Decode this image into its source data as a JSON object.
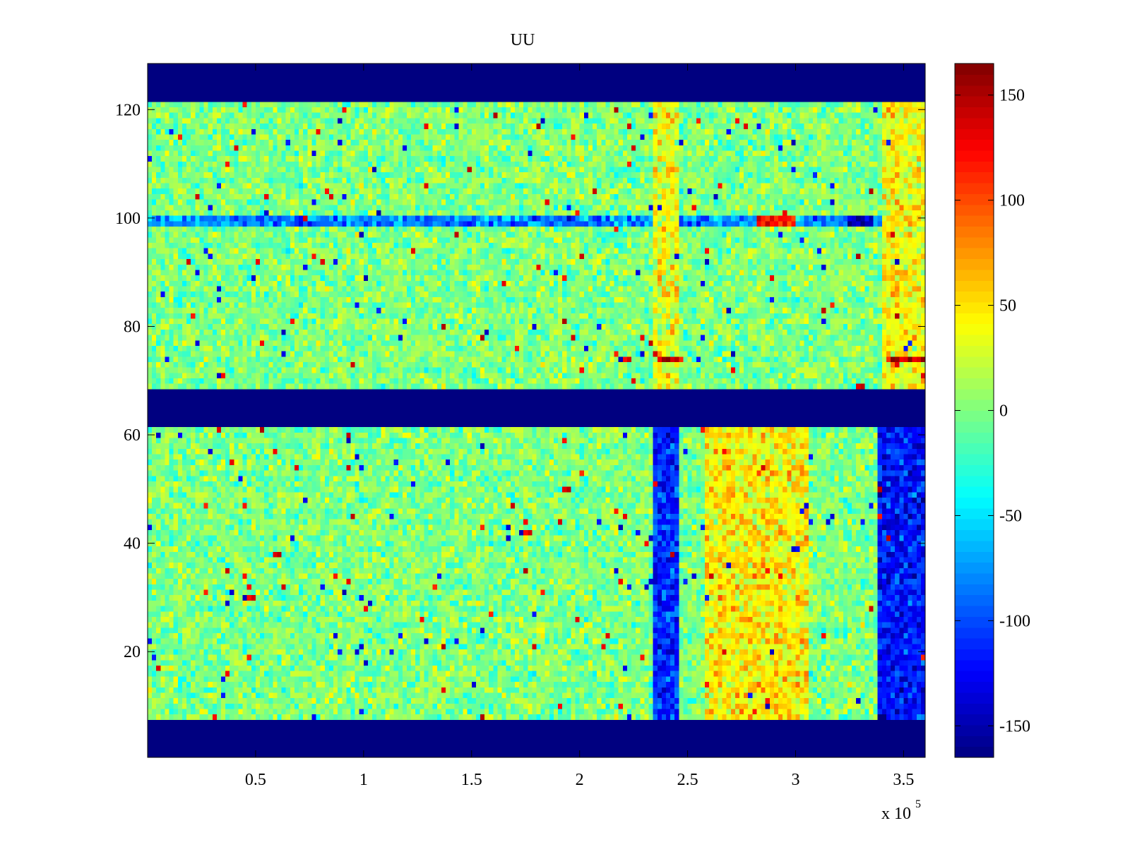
{
  "chart_data": {
    "type": "heatmap",
    "title": "UU",
    "xlabel": "",
    "ylabel": "",
    "x_range": [
      0,
      360000
    ],
    "y_range": [
      1,
      128
    ],
    "x_ticks": [
      50000,
      100000,
      150000,
      200000,
      250000,
      300000,
      350000
    ],
    "x_tick_labels": [
      "0.5",
      "1",
      "1.5",
      "2",
      "2.5",
      "3",
      "3.5"
    ],
    "x_exponent_label": "x 10",
    "x_exponent_power": "5",
    "y_ticks": [
      20,
      40,
      60,
      80,
      100,
      120
    ],
    "y_tick_labels": [
      "20",
      "40",
      "60",
      "80",
      "100",
      "120"
    ],
    "colorbar": {
      "colormap": "jet",
      "range": [
        -165,
        165
      ],
      "ticks": [
        -150,
        -100,
        -50,
        0,
        50,
        100,
        150
      ],
      "tick_labels": [
        "-150",
        "-100",
        "-50",
        "0",
        "50",
        "100",
        "150"
      ]
    },
    "fill_value": -165,
    "empty_row_bands": [
      [
        1,
        7
      ],
      [
        62,
        68
      ],
      [
        122,
        128
      ]
    ],
    "background_level": 0,
    "features": [
      {
        "kind": "row",
        "rows": [
          99,
          100
        ],
        "x": [
          0,
          360000
        ],
        "value": -80
      },
      {
        "kind": "block",
        "rows": [
          8,
          61
        ],
        "x": [
          235000,
          245000
        ],
        "value": -110
      },
      {
        "kind": "block",
        "rows": [
          8,
          61
        ],
        "x": [
          258000,
          305000
        ],
        "value": 45
      },
      {
        "kind": "block",
        "rows": [
          8,
          61
        ],
        "x": [
          338000,
          360000
        ],
        "value": -120
      },
      {
        "kind": "block",
        "rows": [
          69,
          121
        ],
        "x": [
          235000,
          245000
        ],
        "value": 35
      },
      {
        "kind": "block",
        "rows": [
          69,
          121
        ],
        "x": [
          340000,
          360000
        ],
        "value": 40
      },
      {
        "kind": "row",
        "rows": [
          74,
          74
        ],
        "x": [
          237000,
          247000
        ],
        "value": 140
      },
      {
        "kind": "row",
        "rows": [
          74,
          74
        ],
        "x": [
          342000,
          360000
        ],
        "value": 140
      },
      {
        "kind": "row",
        "rows": [
          99,
          100
        ],
        "x": [
          282000,
          300000
        ],
        "value": 120
      },
      {
        "kind": "row",
        "rows": [
          99,
          100
        ],
        "x": [
          325000,
          335000
        ],
        "value": -150
      }
    ]
  }
}
